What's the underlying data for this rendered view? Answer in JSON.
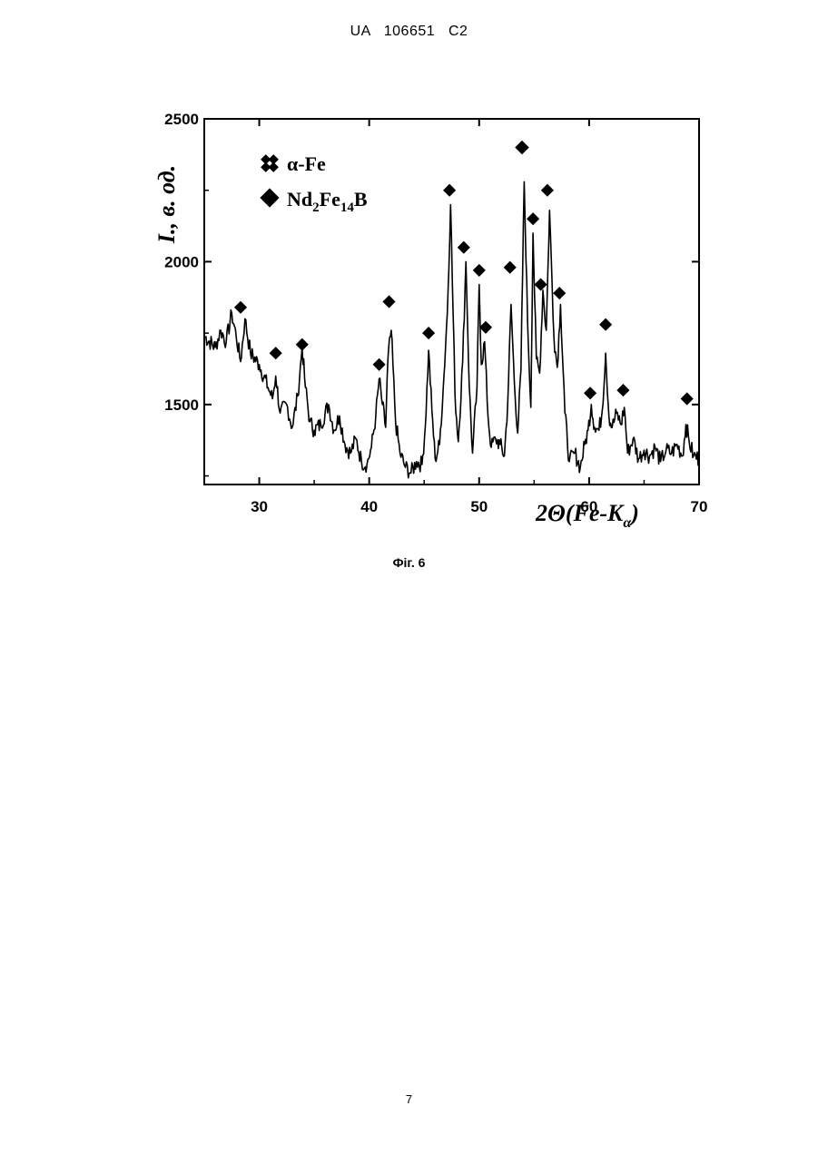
{
  "header": {
    "text": "UA   106651   C2"
  },
  "figure_caption": "Фіг. 6",
  "page_number": "7",
  "chart_data": {
    "type": "line",
    "title": "",
    "xlabel": "2Θ(Fe-Kα)",
    "xlabel_parts": {
      "pre": "2",
      "theta": "Θ",
      "mid": "(Fe-K",
      "sub": "α",
      "post": ")"
    },
    "ylabel": "I., в. од.",
    "xlim": [
      25,
      70
    ],
    "ylim": [
      1220,
      2500
    ],
    "x_ticks": [
      30,
      40,
      50,
      60,
      70
    ],
    "x_tick_labels": [
      "30",
      "40",
      "50",
      "60",
      "70"
    ],
    "y_ticks": [
      1500,
      2000,
      2500
    ],
    "y_tick_labels": [
      "1500",
      "2000",
      "2500"
    ],
    "grid": false,
    "legend_position": "top-left",
    "legend": [
      {
        "marker": "open-diamond",
        "label_main": "α-Fe",
        "label": "α-Fe"
      },
      {
        "marker": "filled-diamond",
        "label_main": "Nd",
        "s1": "2",
        "m2": "Fe",
        "s2": "14",
        "m3": "B",
        "label": "Nd2Fe14B"
      }
    ],
    "series": [
      {
        "x": [
          25.0,
          26.0,
          26.5,
          27.0,
          27.5,
          27.9,
          28.3,
          28.7,
          29.2,
          30.0,
          30.8,
          31.2,
          31.5,
          31.9,
          32.5,
          33.0,
          33.5,
          33.9,
          34.2,
          34.6,
          35.0,
          35.6,
          36.3,
          36.8,
          37.3,
          37.8,
          38.3,
          38.8,
          39.3,
          39.8,
          40.2,
          40.6,
          40.9,
          41.2,
          41.5,
          41.7,
          42.0,
          42.4,
          42.8,
          43.3,
          43.8,
          44.3,
          44.8,
          45.1,
          45.4,
          45.7,
          46.0,
          46.4,
          46.8,
          47.1,
          47.4,
          47.8,
          48.1,
          48.5,
          48.8,
          49.1,
          49.4,
          49.8,
          50.0,
          50.2,
          50.5,
          50.8,
          51.1,
          51.5,
          51.9,
          52.3,
          52.6,
          52.9,
          53.2,
          53.5,
          53.8,
          54.1,
          54.4,
          54.7,
          54.9,
          55.2,
          55.5,
          55.8,
          56.1,
          56.4,
          56.8,
          57.1,
          57.4,
          57.8,
          58.2,
          58.7,
          59.2,
          59.6,
          59.9,
          60.2,
          60.5,
          60.9,
          61.2,
          61.5,
          61.8,
          62.1,
          62.5,
          62.9,
          63.2,
          63.5,
          64.0,
          64.5,
          65.0,
          65.5,
          66.0,
          66.5,
          67.0,
          67.5,
          68.0,
          68.5,
          68.8,
          69.1,
          69.5,
          70.0
        ],
        "y": [
          1740,
          1700,
          1760,
          1720,
          1820,
          1740,
          1650,
          1800,
          1680,
          1640,
          1560,
          1520,
          1600,
          1470,
          1500,
          1420,
          1530,
          1700,
          1560,
          1440,
          1410,
          1430,
          1500,
          1410,
          1460,
          1360,
          1330,
          1380,
          1300,
          1290,
          1350,
          1460,
          1590,
          1500,
          1420,
          1660,
          1760,
          1440,
          1330,
          1280,
          1260,
          1300,
          1290,
          1420,
          1690,
          1480,
          1310,
          1360,
          1600,
          1820,
          2200,
          1540,
          1370,
          1650,
          2000,
          1560,
          1330,
          1560,
          1920,
          1640,
          1720,
          1460,
          1350,
          1380,
          1360,
          1320,
          1510,
          1850,
          1580,
          1400,
          1620,
          2280,
          1790,
          1490,
          2100,
          1660,
          1610,
          1900,
          1760,
          2180,
          1740,
          1630,
          1850,
          1470,
          1300,
          1330,
          1280,
          1360,
          1410,
          1500,
          1420,
          1410,
          1480,
          1680,
          1460,
          1420,
          1470,
          1430,
          1490,
          1330,
          1380,
          1310,
          1340,
          1320,
          1350,
          1300,
          1340,
          1330,
          1360,
          1320,
          1430,
          1370,
          1320,
          1310
        ]
      }
    ],
    "markers": {
      "alpha_fe": [
        {
          "x": 53.9,
          "y": 2400
        }
      ],
      "nd2fe14b": [
        {
          "x": 28.3,
          "y": 1840
        },
        {
          "x": 31.5,
          "y": 1680
        },
        {
          "x": 33.9,
          "y": 1710
        },
        {
          "x": 40.9,
          "y": 1640
        },
        {
          "x": 41.8,
          "y": 1860
        },
        {
          "x": 45.4,
          "y": 1750
        },
        {
          "x": 47.3,
          "y": 2250
        },
        {
          "x": 48.6,
          "y": 2050
        },
        {
          "x": 50.0,
          "y": 1970
        },
        {
          "x": 50.6,
          "y": 1770
        },
        {
          "x": 52.8,
          "y": 1980
        },
        {
          "x": 54.9,
          "y": 2150
        },
        {
          "x": 55.6,
          "y": 1920
        },
        {
          "x": 56.2,
          "y": 2250
        },
        {
          "x": 57.3,
          "y": 1890
        },
        {
          "x": 60.1,
          "y": 1540
        },
        {
          "x": 61.5,
          "y": 1780
        },
        {
          "x": 63.1,
          "y": 1550
        },
        {
          "x": 68.9,
          "y": 1520
        }
      ]
    }
  }
}
